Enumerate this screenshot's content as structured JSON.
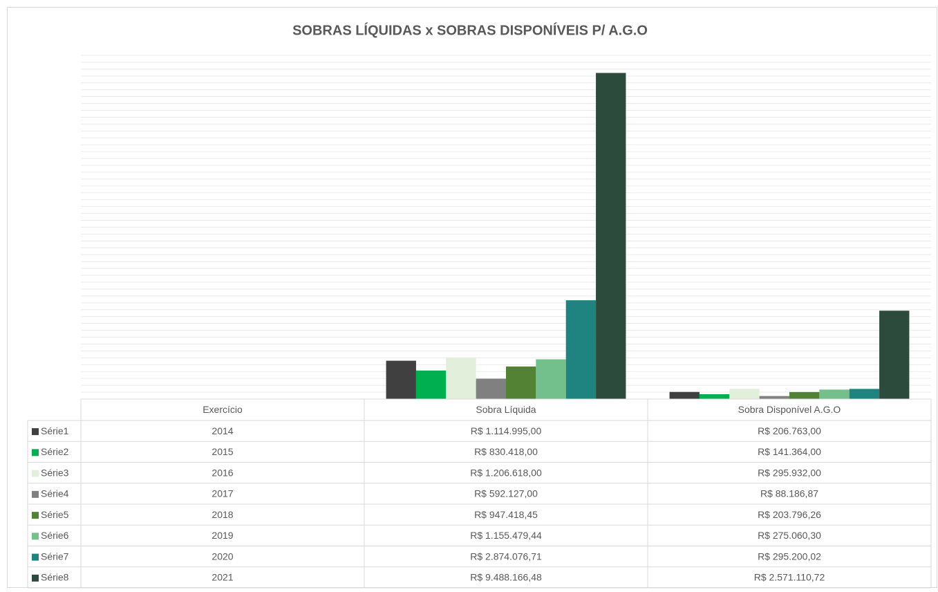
{
  "chart_data": {
    "type": "bar",
    "title": "SOBRAS LÍQUIDAS x SOBRAS DISPONÍVEIS P/ A.G.O",
    "categories": [
      "Exercício",
      "Sobra Líquida",
      "Sobra Disponível A.G.O"
    ],
    "series": [
      {
        "name": "Série1",
        "color": "#404040",
        "values": [
          2014,
          1114995.0,
          206763.0
        ],
        "value_labels": [
          "2014",
          "R$ 1.114.995,00",
          "R$ 206.763,00"
        ]
      },
      {
        "name": "Série2",
        "color": "#00b050",
        "values": [
          2015,
          830418.0,
          141364.0
        ],
        "value_labels": [
          "2015",
          "R$ 830.418,00",
          "R$ 141.364,00"
        ]
      },
      {
        "name": "Série3",
        "color": "#e2efda",
        "values": [
          2016,
          1206618.0,
          295932.0
        ],
        "value_labels": [
          "2016",
          "R$ 1.206.618,00",
          "R$ 295.932,00"
        ]
      },
      {
        "name": "Série4",
        "color": "#808080",
        "values": [
          2017,
          592127.0,
          88186.87
        ],
        "value_labels": [
          "2017",
          "R$ 592.127,00",
          "R$ 88.186,87"
        ]
      },
      {
        "name": "Série5",
        "color": "#548235",
        "values": [
          2018,
          947418.45,
          203796.26
        ],
        "value_labels": [
          "2018",
          "R$ 947.418,45",
          "R$ 203.796,26"
        ]
      },
      {
        "name": "Série6",
        "color": "#73c08c",
        "values": [
          2019,
          1155479.44,
          275060.3
        ],
        "value_labels": [
          "2019",
          "R$ 1.155.479,44",
          "R$ 275.060,30"
        ]
      },
      {
        "name": "Série7",
        "color": "#1f8480",
        "values": [
          2020,
          2874076.71,
          295200.02
        ],
        "value_labels": [
          "2020",
          "R$ 2.874.076,71",
          "R$ 295.200,02"
        ]
      },
      {
        "name": "Série8",
        "color": "#2d4b3c",
        "values": [
          2021,
          9488166.48,
          2571110.72
        ],
        "value_labels": [
          "2021",
          "R$ 9.488.166,48",
          "R$ 2.571.110,72"
        ]
      }
    ],
    "ylim": [
      0,
      10000000
    ],
    "yticks": [
      0,
      200000,
      400000,
      600000,
      800000,
      1000000,
      1200000,
      1400000,
      1600000,
      1800000,
      2000000,
      2200000,
      2400000,
      2600000,
      2800000,
      3000000,
      3200000,
      3400000,
      3600000,
      3800000,
      4000000,
      4200000,
      4400000,
      4600000,
      4800000,
      5000000,
      5200000,
      5400000,
      5600000,
      5800000,
      6000000,
      6200000,
      6400000,
      6600000,
      6800000,
      7000000,
      7200000,
      7400000,
      7600000,
      7800000,
      8000000,
      8200000,
      8400000,
      8600000,
      8800000,
      9000000,
      9200000,
      9400000,
      9600000,
      9800000,
      10000000
    ],
    "grid": true
  }
}
